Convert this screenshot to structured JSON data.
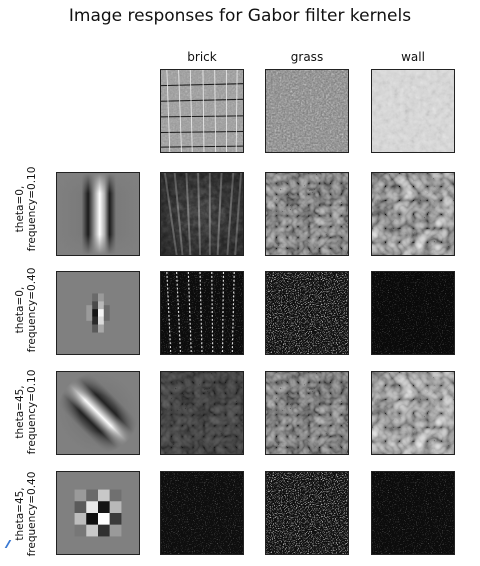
{
  "title": "Image responses for Gabor filter kernels",
  "columns": [
    "brick",
    "grass",
    "wall"
  ],
  "rows": [
    {
      "label_line1": "theta=0,",
      "label_line2": "frequency=0.10"
    },
    {
      "label_line1": "theta=0,",
      "label_line2": "frequency=0.40"
    },
    {
      "label_line1": "theta=45,",
      "label_line2": "frequency=0.10"
    },
    {
      "label_line1": "theta=45,",
      "label_line2": "frequency=0.40"
    }
  ]
}
